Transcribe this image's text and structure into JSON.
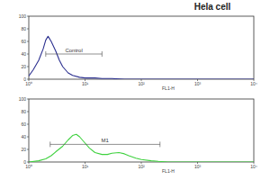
{
  "title": "Hela cell",
  "chart_data": [
    {
      "type": "line",
      "log": "x",
      "color": "#2b2f8f",
      "xlabel": "FL1-H",
      "x": [
        1,
        1.2,
        1.5,
        1.8,
        2,
        2.2,
        2.5,
        3,
        3.5,
        4,
        5,
        6,
        8,
        10,
        15,
        20,
        30,
        50,
        100,
        300,
        1000,
        10000
      ],
      "values": [
        5,
        15,
        30,
        48,
        62,
        68,
        60,
        45,
        30,
        20,
        10,
        6,
        3,
        2,
        2,
        1,
        1,
        0,
        0,
        0,
        0,
        0
      ],
      "xlim": [
        1,
        10000
      ],
      "ylim": [
        0,
        100
      ],
      "xticks": [
        {
          "value": 1,
          "label": "10⁰"
        },
        {
          "value": 10,
          "label": "10¹"
        },
        {
          "value": 100,
          "label": "10²"
        },
        {
          "value": 1000,
          "label": "10³"
        },
        {
          "value": 10000,
          "label": "10⁴"
        }
      ],
      "yticks": [
        0,
        20,
        40,
        60,
        80,
        100
      ],
      "annotations": [
        {
          "text": "Control",
          "x": [
            2,
            20
          ],
          "y": 40
        }
      ]
    },
    {
      "type": "line",
      "log": "x",
      "color": "#3fd13f",
      "xlabel": "FL1-H",
      "x": [
        1,
        1.5,
        2,
        2.5,
        3,
        4,
        5,
        6,
        7,
        8,
        10,
        12,
        15,
        20,
        25,
        30,
        40,
        50,
        60,
        80,
        100,
        150,
        200,
        300,
        1000,
        10000
      ],
      "values": [
        0,
        2,
        5,
        10,
        16,
        25,
        35,
        42,
        44,
        40,
        30,
        22,
        15,
        12,
        12,
        14,
        15,
        13,
        10,
        6,
        4,
        2,
        1,
        0,
        0,
        0
      ],
      "xlim": [
        1,
        10000
      ],
      "ylim": [
        0,
        100
      ],
      "xticks": [
        {
          "value": 1,
          "label": "10⁰"
        },
        {
          "value": 10,
          "label": "10¹"
        },
        {
          "value": 100,
          "label": "10²"
        },
        {
          "value": 1000,
          "label": "10³"
        },
        {
          "value": 10000,
          "label": "10⁴"
        }
      ],
      "yticks": [
        0,
        20,
        40,
        60,
        80,
        100
      ],
      "annotations": [
        {
          "text": "M1",
          "x": [
            2.4,
            215
          ],
          "y": 28
        }
      ]
    }
  ]
}
